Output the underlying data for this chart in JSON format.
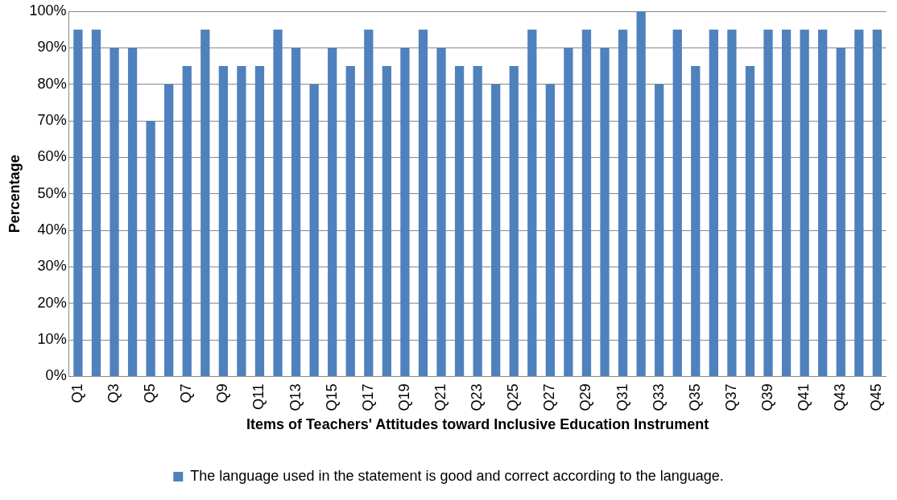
{
  "chart_data": {
    "type": "bar",
    "xlabel": "Items of Teachers' Attitudes toward Inclusive Education Instrument",
    "ylabel": "Percentage",
    "categories": [
      "Q1",
      null,
      "Q3",
      null,
      "Q5",
      null,
      "Q7",
      null,
      "Q9",
      null,
      "Q11",
      null,
      "Q13",
      null,
      "Q15",
      null,
      "Q17",
      null,
      "Q19",
      null,
      "Q21",
      null,
      "Q23",
      null,
      "Q25",
      null,
      "Q27",
      null,
      "Q29",
      null,
      "Q31",
      null,
      "Q33",
      null,
      "Q35",
      null,
      "Q37",
      null,
      "Q39",
      null,
      "Q41",
      null,
      "Q43",
      null,
      "Q45"
    ],
    "series": [
      {
        "name": "The language used in the statement is good and correct according to the language.",
        "color": "#4f81bd",
        "values": [
          95,
          95,
          90,
          90,
          70,
          80,
          85,
          95,
          85,
          85,
          85,
          95,
          90,
          80,
          90,
          85,
          95,
          85,
          90,
          95,
          90,
          85,
          85,
          80,
          85,
          95,
          80,
          90,
          95,
          90,
          95,
          100,
          80,
          95,
          85,
          95,
          95,
          85,
          95,
          95,
          95,
          95,
          90,
          95,
          95
        ]
      }
    ],
    "ylim": [
      0,
      100
    ],
    "yticks": [
      {
        "value": 0,
        "label": "0%"
      },
      {
        "value": 10,
        "label": "10%"
      },
      {
        "value": 20,
        "label": "20%"
      },
      {
        "value": 30,
        "label": "30%"
      },
      {
        "value": 40,
        "label": "40%"
      },
      {
        "value": 50,
        "label": "50%"
      },
      {
        "value": 60,
        "label": "60%"
      },
      {
        "value": 70,
        "label": "70%"
      },
      {
        "value": 80,
        "label": "80%"
      },
      {
        "value": 90,
        "label": "90%"
      },
      {
        "value": 100,
        "label": "100%"
      }
    ],
    "grid": "y",
    "legend": "bottom"
  }
}
